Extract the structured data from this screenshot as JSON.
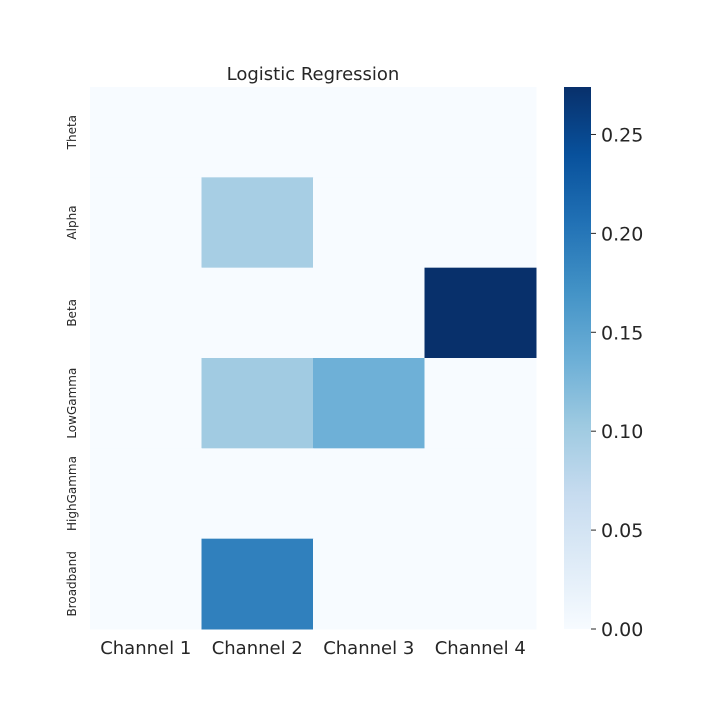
{
  "chart_data": {
    "type": "heatmap",
    "title": "Logistic Regression",
    "xlabel": "",
    "ylabel": "",
    "x_categories": [
      "Channel 1",
      "Channel 2",
      "Channel 3",
      "Channel 4"
    ],
    "y_categories": [
      "Theta",
      "Alpha",
      "Beta",
      "LowGamma",
      "HighGamma",
      "Broadband"
    ],
    "values": [
      [
        0,
        0,
        0,
        0
      ],
      [
        0,
        0.095,
        0,
        0
      ],
      [
        0,
        0,
        0,
        0.274
      ],
      [
        0,
        0.1,
        0.135,
        0
      ],
      [
        0,
        0,
        0,
        0
      ],
      [
        0,
        0.19,
        0,
        0
      ]
    ],
    "colorbar": {
      "range": [
        0,
        0.274
      ],
      "ticks": [
        0.0,
        0.05,
        0.1,
        0.15,
        0.2,
        0.25
      ],
      "tick_labels": [
        "0.00",
        "0.05",
        "0.10",
        "0.15",
        "0.20",
        "0.25"
      ],
      "colormap": "Blues"
    },
    "grid": false,
    "legend": "colorbar-right"
  }
}
